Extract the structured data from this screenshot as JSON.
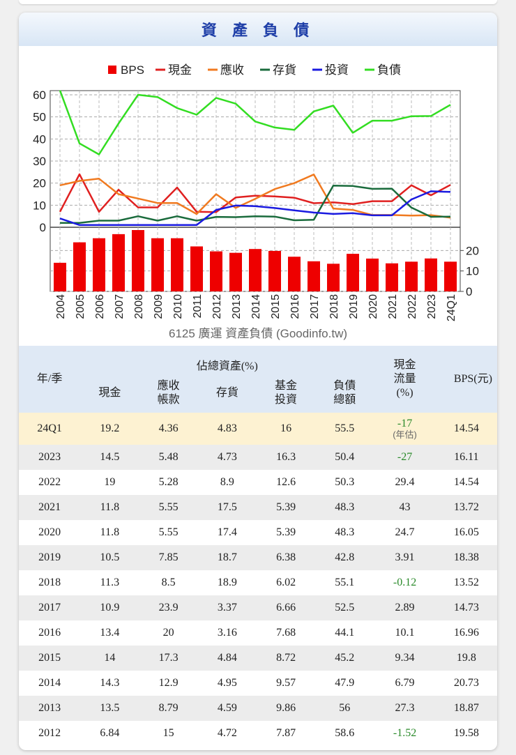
{
  "title": "資 產 負 債",
  "chart_data": {
    "type": "bar+line",
    "legend": [
      "BPS",
      "現金",
      "應收",
      "存貨",
      "投資",
      "負債"
    ],
    "colors": {
      "BPS": "#ee0000",
      "現金": "#e02020",
      "應收": "#f07a20",
      "存貨": "#1a6b3c",
      "投資": "#1a1ae0",
      "負債": "#33dd22"
    },
    "categories": [
      "2004",
      "2005",
      "2006",
      "2007",
      "2008",
      "2009",
      "2010",
      "2011",
      "2012",
      "2013",
      "2014",
      "2015",
      "2016",
      "2017",
      "2018",
      "2019",
      "2020",
      "2021",
      "2022",
      "2023",
      "24Q1"
    ],
    "series": [
      {
        "name": "現金",
        "values": [
          7,
          24,
          7,
          17,
          9,
          9,
          18,
          7,
          6.84,
          13.5,
          14.3,
          14,
          13.4,
          10.9,
          11.3,
          10.5,
          11.8,
          11.8,
          19,
          14.5,
          19.2
        ]
      },
      {
        "name": "應收",
        "values": [
          19,
          21,
          22,
          15,
          13,
          11,
          11,
          6,
          15,
          8.79,
          12.9,
          17.3,
          20,
          23.9,
          8.5,
          7.85,
          5.55,
          5.55,
          5.28,
          5.48,
          4.36
        ]
      },
      {
        "name": "存貨",
        "values": [
          2,
          2,
          3,
          3,
          5,
          3,
          5,
          3,
          4.72,
          4.59,
          4.95,
          4.84,
          3.16,
          3.37,
          18.9,
          18.7,
          17.4,
          17.5,
          8.9,
          4.73,
          4.83
        ]
      },
      {
        "name": "投資",
        "values": [
          4,
          1,
          1,
          1,
          1,
          1,
          1,
          1,
          7.87,
          9.86,
          9.57,
          8.72,
          7.68,
          6.66,
          6.02,
          6.38,
          5.39,
          5.39,
          12.6,
          16.3,
          16
        ]
      },
      {
        "name": "負債",
        "values": [
          62,
          38,
          33,
          47,
          60,
          59,
          54,
          51,
          58.6,
          56,
          47.9,
          45.2,
          44.1,
          52.5,
          55.1,
          42.8,
          48.3,
          48.3,
          50.3,
          50.4,
          55.5
        ]
      },
      {
        "name": "BPS",
        "values": [
          14,
          24,
          26,
          28,
          30,
          26,
          26,
          22,
          19.58,
          18.87,
          20.73,
          19.8,
          16.96,
          14.73,
          13.52,
          18.38,
          16.05,
          13.72,
          14.54,
          16.11,
          14.54
        ]
      }
    ],
    "ylim_top": [
      0,
      60
    ],
    "yticks_top": [
      "0",
      "10",
      "20",
      "30",
      "40",
      "50",
      "60"
    ],
    "ylim_bottom": [
      0,
      30
    ],
    "yticks_bottom": [
      "0",
      "10",
      "20"
    ],
    "caption": "6125 廣運 資產負債 (Goodinfo.tw)"
  },
  "table": {
    "header": {
      "year": "年/季",
      "group": "佔總資產(%)",
      "cash": "現金",
      "recv": "應收帳款",
      "inv": "存貨",
      "fund": "基金投資",
      "debt": "負債總額",
      "cf": "現金流量(%)",
      "bps": "BPS(元)"
    },
    "rows": [
      {
        "year": "24Q1",
        "cash": "19.2",
        "recv": "4.36",
        "inv": "4.83",
        "fund": "16",
        "debt": "55.5",
        "cf": "-17",
        "cf_note": "(年估)",
        "bps": "14.54"
      },
      {
        "year": "2023",
        "cash": "14.5",
        "recv": "5.48",
        "inv": "4.73",
        "fund": "16.3",
        "debt": "50.4",
        "cf": "-27",
        "bps": "16.11"
      },
      {
        "year": "2022",
        "cash": "19",
        "recv": "5.28",
        "inv": "8.9",
        "fund": "12.6",
        "debt": "50.3",
        "cf": "29.4",
        "bps": "14.54"
      },
      {
        "year": "2021",
        "cash": "11.8",
        "recv": "5.55",
        "inv": "17.5",
        "fund": "5.39",
        "debt": "48.3",
        "cf": "43",
        "bps": "13.72"
      },
      {
        "year": "2020",
        "cash": "11.8",
        "recv": "5.55",
        "inv": "17.4",
        "fund": "5.39",
        "debt": "48.3",
        "cf": "24.7",
        "bps": "16.05"
      },
      {
        "year": "2019",
        "cash": "10.5",
        "recv": "7.85",
        "inv": "18.7",
        "fund": "6.38",
        "debt": "42.8",
        "cf": "3.91",
        "bps": "18.38"
      },
      {
        "year": "2018",
        "cash": "11.3",
        "recv": "8.5",
        "inv": "18.9",
        "fund": "6.02",
        "debt": "55.1",
        "cf": "-0.12",
        "bps": "13.52"
      },
      {
        "year": "2017",
        "cash": "10.9",
        "recv": "23.9",
        "inv": "3.37",
        "fund": "6.66",
        "debt": "52.5",
        "cf": "2.89",
        "bps": "14.73"
      },
      {
        "year": "2016",
        "cash": "13.4",
        "recv": "20",
        "inv": "3.16",
        "fund": "7.68",
        "debt": "44.1",
        "cf": "10.1",
        "bps": "16.96"
      },
      {
        "year": "2015",
        "cash": "14",
        "recv": "17.3",
        "inv": "4.84",
        "fund": "8.72",
        "debt": "45.2",
        "cf": "9.34",
        "bps": "19.8"
      },
      {
        "year": "2014",
        "cash": "14.3",
        "recv": "12.9",
        "inv": "4.95",
        "fund": "9.57",
        "debt": "47.9",
        "cf": "6.79",
        "bps": "20.73"
      },
      {
        "year": "2013",
        "cash": "13.5",
        "recv": "8.79",
        "inv": "4.59",
        "fund": "9.86",
        "debt": "56",
        "cf": "27.3",
        "bps": "18.87"
      },
      {
        "year": "2012",
        "cash": "6.84",
        "recv": "15",
        "inv": "4.72",
        "fund": "7.87",
        "debt": "58.6",
        "cf": "-1.52",
        "bps": "19.58"
      }
    ]
  }
}
